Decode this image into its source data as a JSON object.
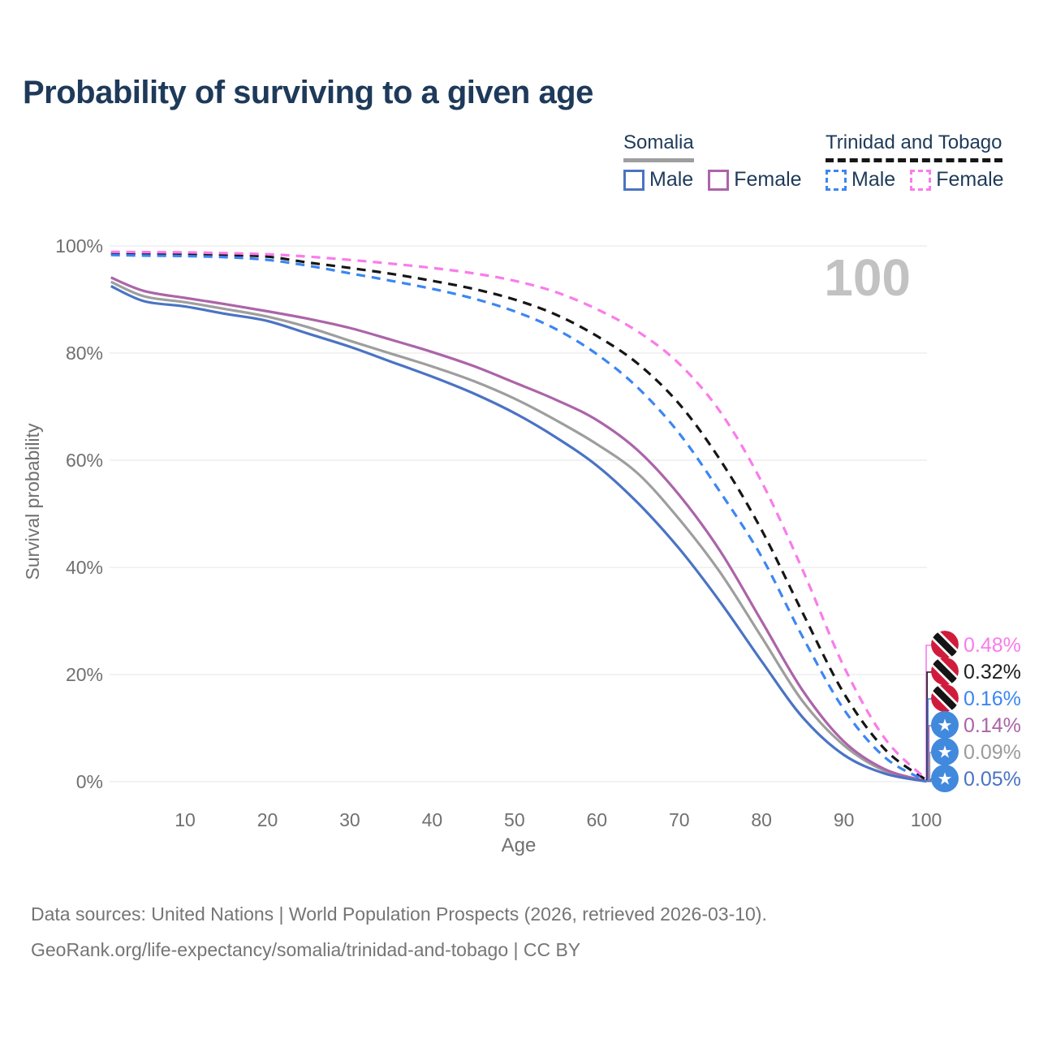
{
  "header": {
    "title": "Probability of surviving to a given age"
  },
  "legend": {
    "somalia": {
      "name": "Somalia",
      "male_label": "Male",
      "female_label": "Female"
    },
    "trinidad": {
      "name": "Trinidad and Tobago",
      "male_label": "Male",
      "female_label": "Female"
    }
  },
  "watermark_age": "100",
  "footer": {
    "line1": "Data sources: United Nations | World Population Prospects (2026, retrieved 2026-03-10).",
    "line2": "GeoRank.org/life-expectancy/somalia/trinidad-and-tobago | CC BY"
  },
  "colors": {
    "title_text": "#1E3A5A",
    "axis_text": "#707070",
    "gridline": "#E9E9E9",
    "watermark": "#C2C2C2",
    "footer_text": "#757575"
  },
  "flags": {
    "trinidad": {
      "red": "#D01C3C",
      "black": "#141414",
      "white": "#FFFFFF"
    },
    "somalia": {
      "blue": "#4189DD",
      "white": "#FFFFFF"
    }
  },
  "chart_data": {
    "type": "line",
    "title": "Probability of surviving to a given age",
    "xlabel": "Age",
    "ylabel": "Survival probability",
    "xlim": [
      0,
      100
    ],
    "ylim": [
      0,
      100
    ],
    "grid": true,
    "x_ticks": [
      "10",
      "20",
      "30",
      "40",
      "50",
      "60",
      "70",
      "80",
      "90",
      "100"
    ],
    "x_tick_values": [
      10,
      20,
      30,
      40,
      50,
      60,
      70,
      80,
      90,
      100
    ],
    "y_ticks": [
      "0%",
      "20%",
      "40%",
      "60%",
      "80%",
      "100%"
    ],
    "y_tick_values": [
      0,
      20,
      40,
      60,
      80,
      100
    ],
    "legend_position": "top-right",
    "series": [
      {
        "id": "somalia-both",
        "country": "Somalia",
        "sex": "Both",
        "style": "solid",
        "color": "#9E9E9E",
        "label_color": "#9B9B9B",
        "end_label": "0.09%",
        "flag": "somalia",
        "points": [
          [
            1,
            93.3
          ],
          [
            5,
            90.6
          ],
          [
            10,
            89.5
          ],
          [
            15,
            88.2
          ],
          [
            20,
            86.8
          ],
          [
            25,
            84.8
          ],
          [
            30,
            82.3
          ],
          [
            35,
            79.9
          ],
          [
            40,
            77.5
          ],
          [
            45,
            74.8
          ],
          [
            50,
            71.5
          ],
          [
            55,
            67.5
          ],
          [
            60,
            63.0
          ],
          [
            65,
            57.5
          ],
          [
            70,
            49.0
          ],
          [
            75,
            39.0
          ],
          [
            80,
            27.0
          ],
          [
            85,
            15.0
          ],
          [
            90,
            6.8
          ],
          [
            95,
            2.0
          ],
          [
            100,
            0.09
          ]
        ]
      },
      {
        "id": "somalia-female",
        "country": "Somalia",
        "sex": "Female",
        "style": "solid",
        "color": "#AC64A8",
        "label_color": "#AC64A8",
        "end_label": "0.14%",
        "flag": "somalia",
        "points": [
          [
            1,
            94.1
          ],
          [
            5,
            91.6
          ],
          [
            10,
            90.3
          ],
          [
            15,
            89.1
          ],
          [
            20,
            87.8
          ],
          [
            25,
            86.4
          ],
          [
            30,
            84.7
          ],
          [
            35,
            82.5
          ],
          [
            40,
            80.2
          ],
          [
            45,
            77.6
          ],
          [
            50,
            74.5
          ],
          [
            55,
            71.3
          ],
          [
            60,
            67.5
          ],
          [
            65,
            61.8
          ],
          [
            70,
            53.5
          ],
          [
            75,
            43.0
          ],
          [
            80,
            30.0
          ],
          [
            85,
            17.0
          ],
          [
            90,
            7.5
          ],
          [
            95,
            2.3
          ],
          [
            100,
            0.14
          ]
        ]
      },
      {
        "id": "somalia-male",
        "country": "Somalia",
        "sex": "Male",
        "style": "solid",
        "color": "#4A73C4",
        "label_color": "#4A73C4",
        "end_label": "0.05%",
        "flag": "somalia",
        "points": [
          [
            1,
            92.5
          ],
          [
            5,
            89.7
          ],
          [
            10,
            88.7
          ],
          [
            15,
            87.3
          ],
          [
            20,
            86.0
          ],
          [
            25,
            83.6
          ],
          [
            30,
            81.2
          ],
          [
            35,
            78.4
          ],
          [
            40,
            75.6
          ],
          [
            45,
            72.5
          ],
          [
            50,
            68.8
          ],
          [
            55,
            64.3
          ],
          [
            60,
            59.0
          ],
          [
            65,
            52.0
          ],
          [
            70,
            43.5
          ],
          [
            75,
            33.5
          ],
          [
            80,
            22.5
          ],
          [
            85,
            12.0
          ],
          [
            90,
            5.0
          ],
          [
            95,
            1.5
          ],
          [
            100,
            0.05
          ]
        ]
      },
      {
        "id": "trinidad-both",
        "country": "Trinidad and Tobago",
        "sex": "Both",
        "style": "dashed",
        "color": "#161616",
        "label_color": "#1F1F1F",
        "end_label": "0.32%",
        "flag": "trinidad",
        "points": [
          [
            1,
            98.6
          ],
          [
            5,
            98.55
          ],
          [
            10,
            98.45
          ],
          [
            15,
            98.3
          ],
          [
            20,
            98.0
          ],
          [
            25,
            96.9
          ],
          [
            30,
            95.9
          ],
          [
            35,
            94.8
          ],
          [
            40,
            93.5
          ],
          [
            45,
            92.0
          ],
          [
            50,
            90.0
          ],
          [
            55,
            87.2
          ],
          [
            60,
            83.2
          ],
          [
            65,
            78.0
          ],
          [
            70,
            70.5
          ],
          [
            75,
            60.0
          ],
          [
            80,
            47.0
          ],
          [
            85,
            31.5
          ],
          [
            90,
            16.5
          ],
          [
            95,
            6.0
          ],
          [
            100,
            0.32
          ]
        ]
      },
      {
        "id": "trinidad-male",
        "country": "Trinidad and Tobago",
        "sex": "Male",
        "style": "dashed",
        "color": "#3C86F2",
        "label_color": "#3C86F2",
        "end_label": "0.16%",
        "flag": "trinidad",
        "points": [
          [
            1,
            98.3
          ],
          [
            5,
            98.2
          ],
          [
            10,
            98.1
          ],
          [
            15,
            97.9
          ],
          [
            20,
            97.4
          ],
          [
            25,
            96.3
          ],
          [
            30,
            94.9
          ],
          [
            35,
            93.5
          ],
          [
            40,
            92.0
          ],
          [
            45,
            90.2
          ],
          [
            50,
            87.8
          ],
          [
            55,
            84.5
          ],
          [
            60,
            79.8
          ],
          [
            65,
            73.5
          ],
          [
            70,
            65.0
          ],
          [
            75,
            54.0
          ],
          [
            80,
            42.0
          ],
          [
            85,
            27.0
          ],
          [
            90,
            13.5
          ],
          [
            95,
            4.5
          ],
          [
            100,
            0.16
          ]
        ]
      },
      {
        "id": "trinidad-female",
        "country": "Trinidad and Tobago",
        "sex": "Female",
        "style": "dashed",
        "color": "#F97CEA",
        "label_color": "#F97CEA",
        "end_label": "0.48%",
        "flag": "trinidad",
        "points": [
          [
            1,
            98.9
          ],
          [
            5,
            98.85
          ],
          [
            10,
            98.8
          ],
          [
            15,
            98.65
          ],
          [
            20,
            98.45
          ],
          [
            25,
            98.0
          ],
          [
            30,
            97.4
          ],
          [
            35,
            96.7
          ],
          [
            40,
            95.9
          ],
          [
            45,
            94.9
          ],
          [
            50,
            93.5
          ],
          [
            55,
            91.4
          ],
          [
            60,
            88.2
          ],
          [
            65,
            84.0
          ],
          [
            70,
            78.0
          ],
          [
            75,
            69.0
          ],
          [
            80,
            56.0
          ],
          [
            85,
            39.5
          ],
          [
            90,
            21.5
          ],
          [
            95,
            8.0
          ],
          [
            100,
            0.48
          ]
        ]
      }
    ]
  }
}
